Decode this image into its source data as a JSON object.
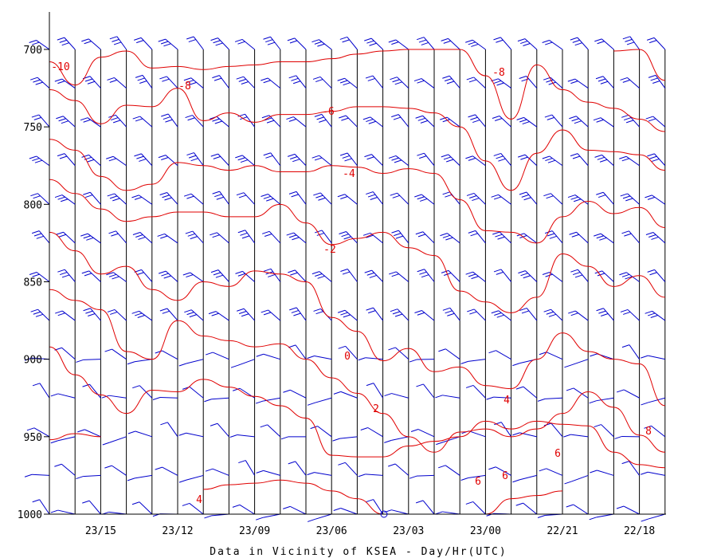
{
  "chart_data": {
    "type": "time-height cross section",
    "xlabel": "Data in Vicinity of KSEA - Day/Hr(UTC)",
    "ylabel": "",
    "x_tick_labels": [
      "23/15",
      "23/12",
      "23/09",
      "23/06",
      "23/03",
      "23/00",
      "22/21",
      "22/18"
    ],
    "y_tick_labels": [
      "700",
      "750",
      "800",
      "850",
      "900",
      "950",
      "1000"
    ],
    "ylim": [
      1000,
      700
    ],
    "y_scale": "pressure (inverted)",
    "grid": "vertical lines at each hourly analysis time",
    "time_steps_hours_back": [
      18,
      17,
      16,
      15,
      14,
      13,
      12,
      11,
      10,
      9,
      8,
      7,
      6,
      5,
      4,
      3,
      2,
      1,
      0,
      -1,
      -2,
      -3,
      -4,
      -5,
      -6
    ],
    "isotherm_labels": [
      "-10",
      "-8",
      "-8",
      "-6",
      "-4",
      "-2",
      "0",
      "2",
      "4",
      "4",
      "6",
      "6",
      "6",
      "8"
    ],
    "isotherms": [
      {
        "label": "-10",
        "hours_back": [
          -6,
          -5,
          -4
        ],
        "pressure": [
          720,
          700,
          701
        ]
      },
      {
        "label": "-8",
        "hours_back": [
          -6,
          -5,
          -4,
          -3,
          -2,
          -1,
          0,
          1,
          2,
          3,
          4,
          5,
          6,
          7,
          8,
          9,
          10,
          11,
          12,
          13,
          14,
          15,
          16,
          17,
          18
        ],
        "pressure": [
          753,
          745,
          738,
          734,
          726,
          710,
          745,
          717,
          700,
          700,
          700,
          701,
          703,
          706,
          708,
          708,
          710,
          711,
          713,
          711,
          712,
          701,
          705,
          723,
          708
        ]
      },
      {
        "label": "-6",
        "hours_back": [
          -6,
          -5,
          -4,
          -3,
          -2,
          -1,
          0,
          1,
          2,
          3,
          4,
          5,
          6,
          7,
          8,
          9,
          10,
          11,
          12,
          13,
          14,
          15,
          16,
          17,
          18
        ],
        "pressure": [
          778,
          768,
          766,
          765,
          752,
          767,
          791,
          772,
          750,
          741,
          738,
          737,
          737,
          740,
          742,
          742,
          747,
          741,
          746,
          725,
          737,
          736,
          748,
          733,
          726
        ]
      },
      {
        "label": "-4",
        "hours_back": [
          -6,
          -5,
          -4,
          -3,
          -2,
          -1,
          0,
          1,
          2,
          3,
          4,
          5,
          6,
          7,
          8,
          9,
          10,
          11,
          12,
          13,
          14,
          15,
          16,
          17,
          18
        ],
        "pressure": [
          815,
          802,
          806,
          798,
          808,
          825,
          818,
          817,
          797,
          780,
          777,
          780,
          776,
          775,
          779,
          779,
          775,
          778,
          775,
          773,
          787,
          791,
          782,
          765,
          758
        ]
      },
      {
        "label": "-2",
        "hours_back": [
          -6,
          -5,
          -4,
          -3,
          -2,
          -1,
          0,
          1,
          2,
          3,
          4,
          5,
          6,
          7,
          8,
          9,
          10,
          11,
          12,
          13,
          14,
          15,
          16,
          17,
          18
        ],
        "pressure": [
          860,
          846,
          853,
          840,
          832,
          860,
          870,
          863,
          856,
          833,
          828,
          818,
          822,
          826,
          812,
          800,
          808,
          808,
          805,
          805,
          808,
          811,
          803,
          793,
          784
        ]
      },
      {
        "label": "0",
        "hours_back": [
          -6,
          -5,
          -4,
          -3,
          -2,
          -1,
          0,
          1,
          2,
          3,
          4,
          5,
          6,
          7,
          8,
          9,
          10,
          11,
          12,
          13,
          14,
          15,
          16,
          17,
          18
        ],
        "pressure": [
          930,
          903,
          900,
          895,
          883,
          900,
          919,
          917,
          905,
          908,
          893,
          901,
          882,
          873,
          850,
          845,
          843,
          853,
          850,
          862,
          855,
          840,
          845,
          830,
          818
        ]
      },
      {
        "label": "2",
        "hours_back": [
          -6,
          -5,
          -4,
          -3,
          -2,
          -1,
          0,
          1,
          2,
          3,
          4,
          5,
          6,
          7,
          8,
          9,
          10,
          11,
          12,
          13,
          14,
          15,
          16,
          17,
          18
        ],
        "pressure": [
          960,
          949,
          931,
          921,
          935,
          945,
          950,
          945,
          947,
          960,
          950,
          935,
          922,
          912,
          900,
          890,
          892,
          888,
          885,
          875,
          900,
          895,
          868,
          862,
          855
        ]
      },
      {
        "label": "4",
        "hours_back": [
          -6,
          -5,
          -4,
          -3,
          -2,
          -1,
          0,
          1,
          2,
          3,
          4,
          5,
          6,
          7,
          8,
          9,
          10,
          11,
          12,
          13,
          14,
          15,
          16,
          17,
          18
        ],
        "pressure": [
          970,
          968,
          960,
          943,
          942,
          940,
          945,
          940,
          950,
          953,
          956,
          963,
          963,
          962,
          938,
          930,
          924,
          918,
          913,
          921,
          920,
          935,
          923,
          910,
          892
        ]
      },
      {
        "label": "4",
        "hours_back": [
          -2,
          -1,
          0,
          1
        ],
        "pressure": [
          985,
          988,
          990,
          1000
        ]
      },
      {
        "label": "6",
        "hours_back": [
          5,
          6,
          7,
          8,
          9,
          10,
          11,
          12
        ],
        "pressure": [
          1000,
          990,
          985,
          980,
          978,
          980,
          981,
          984
        ]
      },
      {
        "label": "6",
        "hours_back": [
          16,
          17,
          18
        ],
        "pressure": [
          950,
          948,
          952
        ]
      }
    ],
    "wind_barb_levels_mb": [
      700,
      725,
      750,
      775,
      800,
      825,
      850,
      875,
      900,
      925,
      950,
      975,
      1000
    ],
    "wind_barbs_note": "blue wind barbs plotted at every hourly time line at each 25 mb level"
  }
}
